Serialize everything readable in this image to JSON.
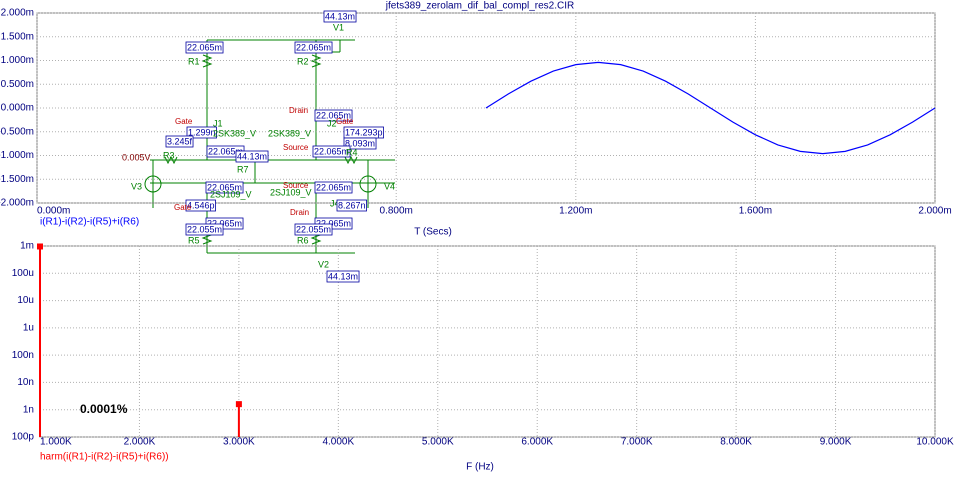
{
  "chart_data": [
    {
      "type": "line",
      "title": "jfets389_zerolam_dif_bal_compl_res2.CIR",
      "x_label": "T (Secs)",
      "x": [
        0.001,
        0.00105,
        0.0011,
        0.00115,
        0.0012,
        0.00125,
        0.0013,
        0.00135,
        0.0014,
        0.00145,
        0.0015,
        0.00155,
        0.0016,
        0.00165,
        0.0017,
        0.00175,
        0.0018,
        0.00185,
        0.0019,
        0.00195,
        0.002
      ],
      "series": [
        {
          "name": "i(R1)-i(R2)-i(R5)+i(R6)",
          "color": "#0000ff",
          "values": [
            0,
            0.000297,
            0.000564,
            0.000777,
            0.000913,
            0.00096,
            0.000913,
            0.000777,
            0.000564,
            0.000297,
            0,
            -0.000297,
            -0.000564,
            -0.000777,
            -0.000913,
            -0.00096,
            -0.000913,
            -0.000777,
            -0.000564,
            -0.000297,
            0
          ]
        }
      ],
      "xlim": [
        0,
        0.002
      ],
      "xticks": [
        {
          "value": 0,
          "label": "0.000m"
        },
        {
          "value": 0.0008,
          "label": "0.800m"
        },
        {
          "value": 0.0012,
          "label": "1.200m"
        },
        {
          "value": 0.0016,
          "label": "1.600m"
        },
        {
          "value": 0.002,
          "label": "2.000m"
        }
      ],
      "ylim": [
        -0.002,
        0.002
      ],
      "yticks": [
        {
          "value": 0.002,
          "label": "2.000m"
        },
        {
          "value": 0.0015,
          "label": "1.500m"
        },
        {
          "value": 0.001,
          "label": "1.000m"
        },
        {
          "value": 0.0005,
          "label": "0.500m"
        },
        {
          "value": 0,
          "label": "0.000m"
        },
        {
          "value": -0.0005,
          "label": "-0.500m"
        },
        {
          "value": -0.001,
          "label": "-1.000m"
        },
        {
          "value": -0.0015,
          "label": "-1.500m"
        },
        {
          "value": -0.002,
          "label": "-2.000m"
        }
      ],
      "grid": true
    },
    {
      "type": "bar",
      "x_label": "F (Hz)",
      "annotation": "0.0001%",
      "x": [
        1000,
        3000
      ],
      "series": [
        {
          "name": "harm(i(R1)-i(R2)-i(R5)+i(R6))",
          "color": "#ff0000",
          "values": [
            0.00096,
            1.6e-09
          ]
        }
      ],
      "xlim": [
        1000,
        10000
      ],
      "xticks": [
        {
          "value": 1000,
          "label": "1.000K"
        },
        {
          "value": 2000,
          "label": "2.000K"
        },
        {
          "value": 3000,
          "label": "3.000K"
        },
        {
          "value": 4000,
          "label": "4.000K"
        },
        {
          "value": 5000,
          "label": "5.000K"
        },
        {
          "value": 6000,
          "label": "6.000K"
        },
        {
          "value": 7000,
          "label": "7.000K"
        },
        {
          "value": 8000,
          "label": "8.000K"
        },
        {
          "value": 9000,
          "label": "9.000K"
        },
        {
          "value": 10000,
          "label": "10.000K"
        }
      ],
      "ylim": [
        1e-10,
        0.001
      ],
      "log_y": true,
      "yticks": [
        {
          "value": 0.001,
          "label": "1m"
        },
        {
          "value": 0.0001,
          "label": "100u"
        },
        {
          "value": 1e-05,
          "label": "10u"
        },
        {
          "value": 1e-06,
          "label": "1u"
        },
        {
          "value": 1e-07,
          "label": "100n"
        },
        {
          "value": 1e-08,
          "label": "10n"
        },
        {
          "value": 1e-09,
          "label": "1n"
        },
        {
          "value": 1e-10,
          "label": "100p"
        }
      ],
      "grid": true
    }
  ],
  "schematic": {
    "labels": [
      "44.13m",
      "V1",
      "22.065m",
      "22.065m",
      "R1",
      "R2",
      "Drain",
      "22.065m",
      "Gate",
      "J2",
      "Gate",
      "J1",
      "1.299n",
      "2SK389_V",
      "2SK389_V",
      "174.293p",
      "3.245f",
      "8.093m",
      "Source",
      "22.065m",
      "22.065m",
      "44.13m",
      "0.005V",
      "R3",
      "R4",
      "R7",
      "V3",
      "V4",
      "Source",
      "22.065m",
      "22.065m",
      "2SJ109_V",
      "2SJ109_V",
      "J4",
      "4.546p",
      "8.267n",
      "Gate",
      "Drain",
      "22.065m",
      "22.065m",
      "22.055m",
      "22.055m",
      "R5",
      "R6",
      "44.13m",
      "V2"
    ]
  }
}
